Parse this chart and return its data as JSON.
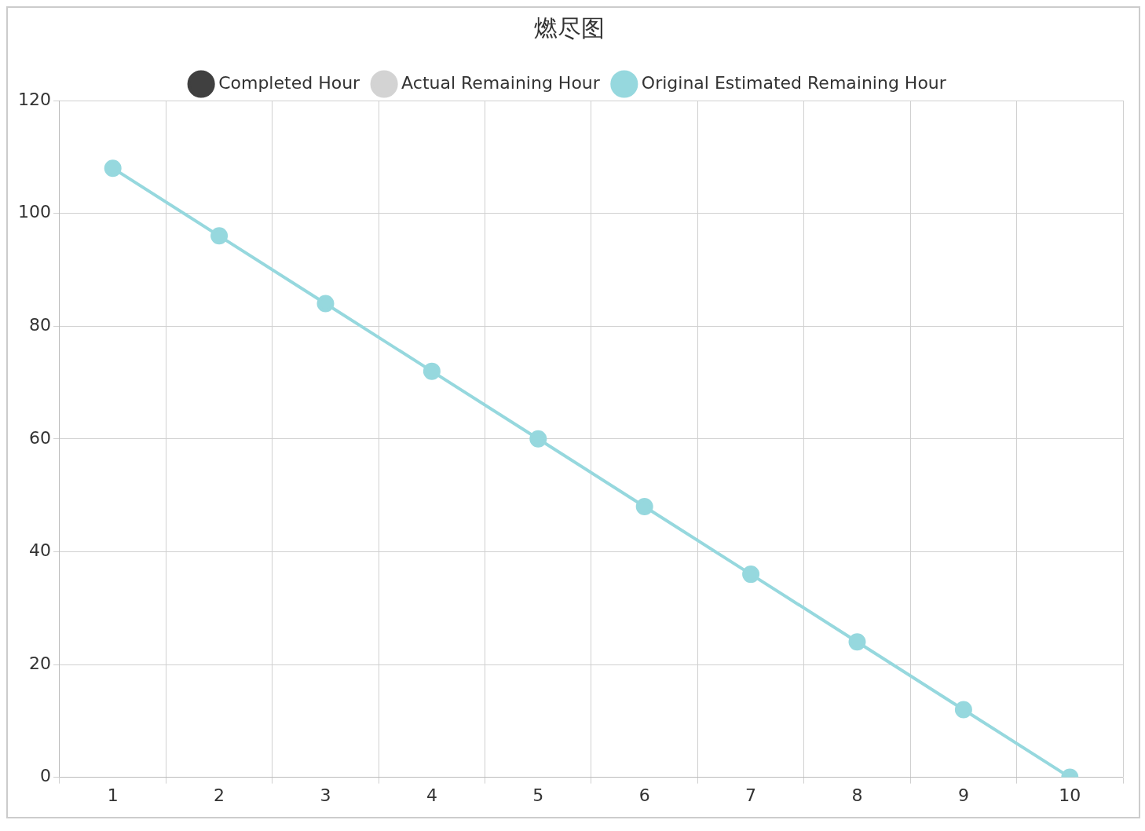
{
  "chart_data": {
    "type": "line",
    "title": "燃尽图",
    "categories": [
      "1",
      "2",
      "3",
      "4",
      "5",
      "6",
      "7",
      "8",
      "9",
      "10"
    ],
    "series": [
      {
        "name": "Completed Hour",
        "color": "#404040",
        "values": [
          null,
          null,
          null,
          null,
          null,
          null,
          null,
          null,
          null,
          null
        ]
      },
      {
        "name": "Actual Remaining Hour",
        "color": "#d3d3d3",
        "values": [
          null,
          null,
          null,
          null,
          null,
          null,
          null,
          null,
          null,
          null
        ]
      },
      {
        "name": "Original Estimated Remaining Hour",
        "color": "#96d8de",
        "values": [
          108,
          96,
          84,
          72,
          60,
          48,
          36,
          24,
          12,
          0
        ]
      }
    ],
    "ylim": [
      0,
      120
    ],
    "yticks": [
      0,
      20,
      40,
      60,
      80,
      100,
      120
    ],
    "grid": true,
    "legend": "top",
    "marker": "circle",
    "line_style": "solid"
  }
}
